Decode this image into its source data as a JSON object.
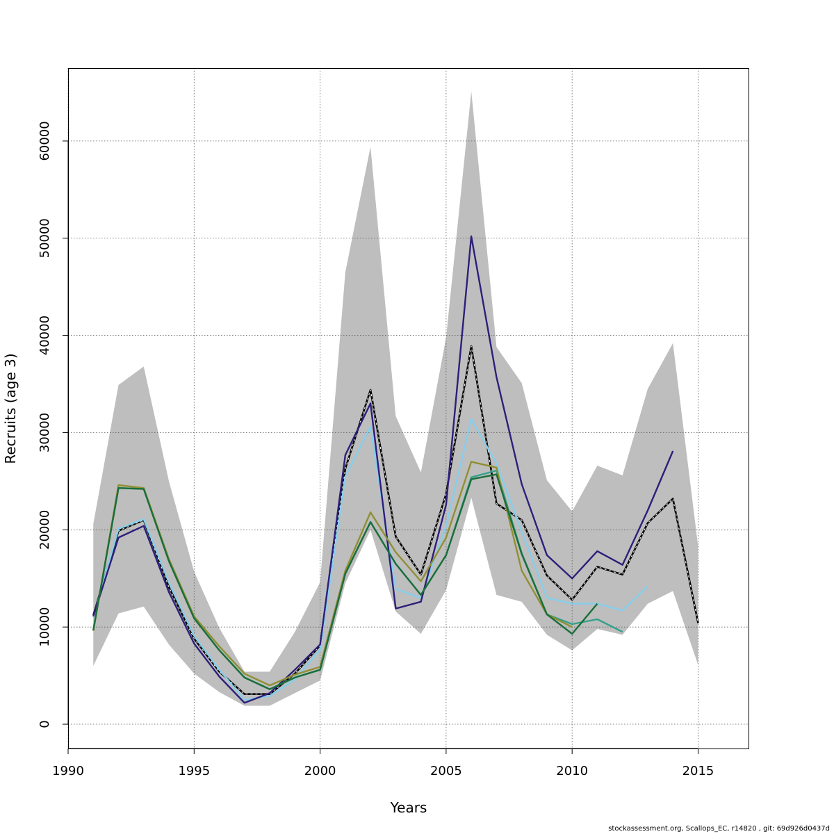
{
  "chart_data": {
    "type": "line",
    "xlabel": "Years",
    "ylabel": "Recruits (age 3)",
    "xlim": [
      1990,
      2017
    ],
    "ylim": [
      -2500,
      67500
    ],
    "x_ticks": [
      1990,
      1995,
      2000,
      2005,
      2010,
      2015
    ],
    "y_ticks": [
      0,
      10000,
      20000,
      30000,
      40000,
      50000,
      60000
    ],
    "x_tick_labels": [
      "1990",
      "1995",
      "2000",
      "2005",
      "2010",
      "2015"
    ],
    "y_tick_labels": [
      "0",
      "10000",
      "20000",
      "30000",
      "40000",
      "50000",
      "60000"
    ],
    "grid": true,
    "confidence_band": {
      "color": "#bebebe",
      "x": [
        1991,
        1992,
        1993,
        1994,
        1995,
        1996,
        1997,
        1998,
        1999,
        2000,
        2001,
        2002,
        2003,
        2004,
        2005,
        2006,
        2007,
        2008,
        2009,
        2010,
        2011,
        2012,
        2013,
        2014,
        2015
      ],
      "upper": [
        20600,
        34900,
        36800,
        25000,
        15700,
        9900,
        5400,
        5400,
        9500,
        14600,
        46500,
        59400,
        31700,
        25900,
        39800,
        65100,
        38800,
        35100,
        25100,
        21900,
        26600,
        25600,
        34500,
        39200,
        18300
      ],
      "lower": [
        6000,
        11400,
        12100,
        8200,
        5200,
        3300,
        1900,
        1900,
        3200,
        4500,
        14500,
        20000,
        11600,
        9300,
        13800,
        23300,
        13300,
        12600,
        9200,
        7600,
        9800,
        9200,
        12400,
        13700,
        6100
      ]
    },
    "series": [
      {
        "color": "#000000",
        "style": "dashed-double",
        "x": [
          1991,
          1992,
          1993,
          1994,
          1995,
          1996,
          1997,
          1998,
          1999,
          2000,
          2001,
          2002,
          2003,
          2004,
          2005,
          2006,
          2007,
          2008,
          2009,
          2010,
          2011,
          2012,
          2013,
          2014,
          2015
        ],
        "values": [
          11200,
          19900,
          21000,
          14100,
          8800,
          5400,
          3100,
          3100,
          5200,
          8100,
          26300,
          34400,
          19300,
          15400,
          23700,
          38900,
          22700,
          21000,
          15300,
          12800,
          16200,
          15400,
          20700,
          23200,
          10400
        ]
      },
      {
        "color": "#87ceeb",
        "x": [
          1991,
          1992,
          1993,
          1994,
          1995,
          1996,
          1997,
          1998,
          1999,
          2000,
          2001,
          2002,
          2003,
          2004,
          2005,
          2006,
          2007,
          2008,
          2009,
          2010,
          2011,
          2012,
          2013
        ],
        "values": [
          11000,
          20100,
          21100,
          14600,
          9100,
          5600,
          2500,
          2900,
          4600,
          7700,
          25500,
          30600,
          13900,
          13000,
          20400,
          31400,
          26800,
          19800,
          13000,
          12400,
          12400,
          11700,
          14200
        ]
      },
      {
        "color": "#2e1e7a",
        "x": [
          1991,
          1992,
          1993,
          1994,
          1995,
          1996,
          1997,
          1998,
          1999,
          2000,
          2001,
          2002,
          2003,
          2004,
          2005,
          2006,
          2007,
          2008,
          2009,
          2010,
          2011,
          2012,
          2013,
          2014
        ],
        "values": [
          11100,
          19200,
          20400,
          13600,
          8300,
          4900,
          2200,
          3200,
          5600,
          8200,
          27700,
          33000,
          11900,
          12600,
          22600,
          50200,
          35700,
          24700,
          17400,
          15000,
          17800,
          16400,
          22000,
          28100
        ]
      },
      {
        "color": "#34a08a",
        "x": [
          1991,
          1992,
          1993,
          1994,
          1995,
          1996,
          1997,
          1998,
          1999,
          2000,
          2001,
          2002,
          2003,
          2004,
          2005,
          2006,
          2007,
          2008,
          2009,
          2010,
          2011,
          2012
        ],
        "values": [
          9700,
          24300,
          24200,
          16800,
          10900,
          7600,
          4800,
          3600,
          4800,
          5600,
          15500,
          20800,
          16500,
          13300,
          17400,
          25400,
          26100,
          17600,
          11300,
          10300,
          10800,
          9500
        ]
      },
      {
        "color": "#8f8f33",
        "x": [
          1991,
          1992,
          1993,
          1994,
          1995,
          1996,
          1997,
          1998,
          1999,
          2000,
          2001,
          2002,
          2003,
          2004,
          2005,
          2006,
          2007,
          2008,
          2009,
          2010
        ],
        "values": [
          9600,
          24600,
          24300,
          17000,
          11100,
          8000,
          5200,
          4000,
          5100,
          5900,
          15800,
          21800,
          17700,
          14700,
          19200,
          27000,
          26400,
          15800,
          11300,
          10000
        ]
      },
      {
        "color": "#1a6e3a",
        "x": [
          1991,
          1992,
          1993,
          1994,
          1995,
          1996,
          1997,
          1998,
          1999,
          2000,
          2001,
          2002,
          2003,
          2004,
          2005,
          2006,
          2007,
          2008,
          2009,
          2010,
          2011
        ],
        "values": [
          9700,
          24300,
          24200,
          16800,
          10900,
          7600,
          4800,
          3600,
          4800,
          5600,
          15500,
          20800,
          16500,
          13300,
          17400,
          25200,
          25700,
          17500,
          11300,
          9300,
          12400
        ]
      }
    ]
  },
  "footer": "stockassessment.org, Scallops_EC, r14820 , git: 69d926d0437d"
}
